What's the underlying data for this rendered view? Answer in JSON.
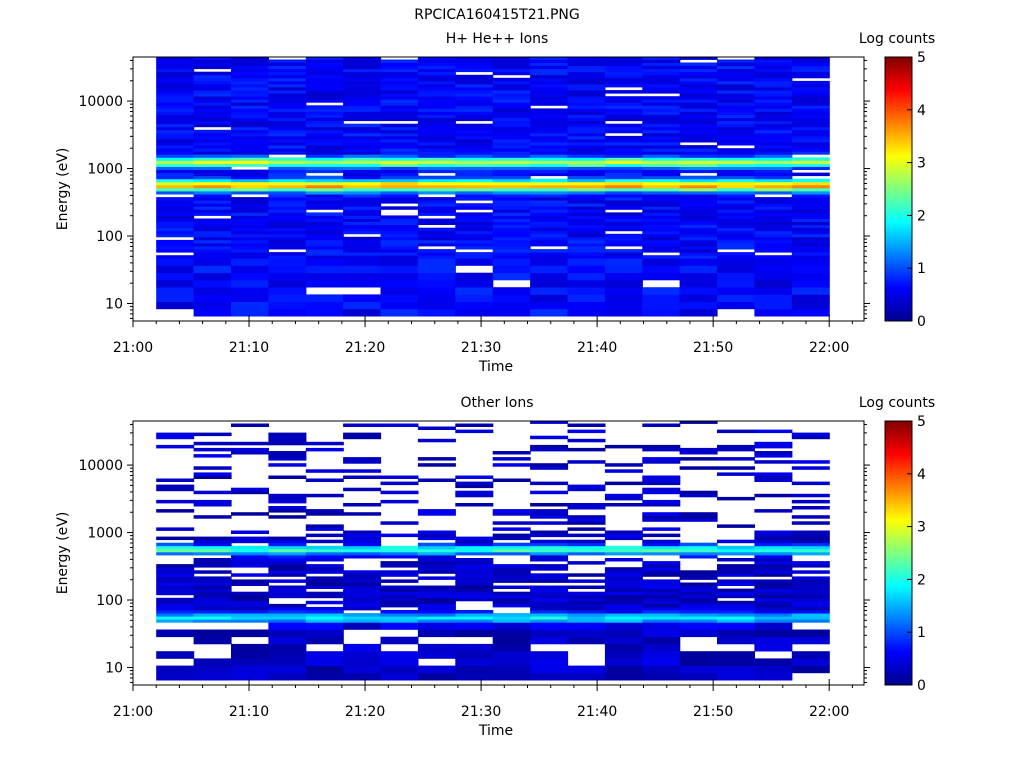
{
  "figure": {
    "title": "RPCICA160415T21.PNG"
  },
  "colorbar": {
    "label": "Log counts",
    "ticks": [
      "0",
      "1",
      "2",
      "3",
      "4",
      "5"
    ],
    "range": [
      0,
      5
    ],
    "colormap": [
      "#00008f",
      "#0000ff",
      "#00ffff",
      "#ffff00",
      "#ff0000",
      "#800000"
    ]
  },
  "chart_data": [
    {
      "type": "heatmap",
      "title": "H+ He++ Ions",
      "xlabel": "Time",
      "ylabel": "Energy (eV)",
      "x_tick_labels": [
        "21:00",
        "21:10",
        "21:20",
        "21:30",
        "21:40",
        "21:50",
        "22:00"
      ],
      "y_tick_labels": [
        "10",
        "100",
        "1000",
        "10000"
      ],
      "y_scale": "log",
      "y_range_eV": [
        5.5,
        45000
      ],
      "x_range": [
        "21:00",
        "22:03"
      ],
      "data_time_range": [
        "21:02",
        "22:00"
      ],
      "n_time_bins": 18,
      "z_scale": "log counts, 0-5",
      "features": {
        "band_1_eV": 1250,
        "band_1_log_counts": 2.3,
        "band_2_eV": 560,
        "band_2_log_counts": 3.0,
        "background_log_counts": 0.6
      }
    },
    {
      "type": "heatmap",
      "title": "Other Ions",
      "xlabel": "Time",
      "ylabel": "Energy (eV)",
      "x_tick_labels": [
        "21:00",
        "21:10",
        "21:20",
        "21:30",
        "21:40",
        "21:50",
        "22:00"
      ],
      "y_tick_labels": [
        "10",
        "100",
        "1000",
        "10000"
      ],
      "y_scale": "log",
      "y_range_eV": [
        5.5,
        45000
      ],
      "x_range": [
        "21:00",
        "22:03"
      ],
      "data_time_range": [
        "21:02",
        "22:00"
      ],
      "n_time_bins": 18,
      "z_scale": "log counts, 0-5",
      "features": {
        "band_1_eV": 560,
        "band_1_log_counts": 1.9,
        "band_2_eV": 55,
        "band_2_log_counts": 1.5,
        "background_log_counts": 0.3
      }
    }
  ]
}
